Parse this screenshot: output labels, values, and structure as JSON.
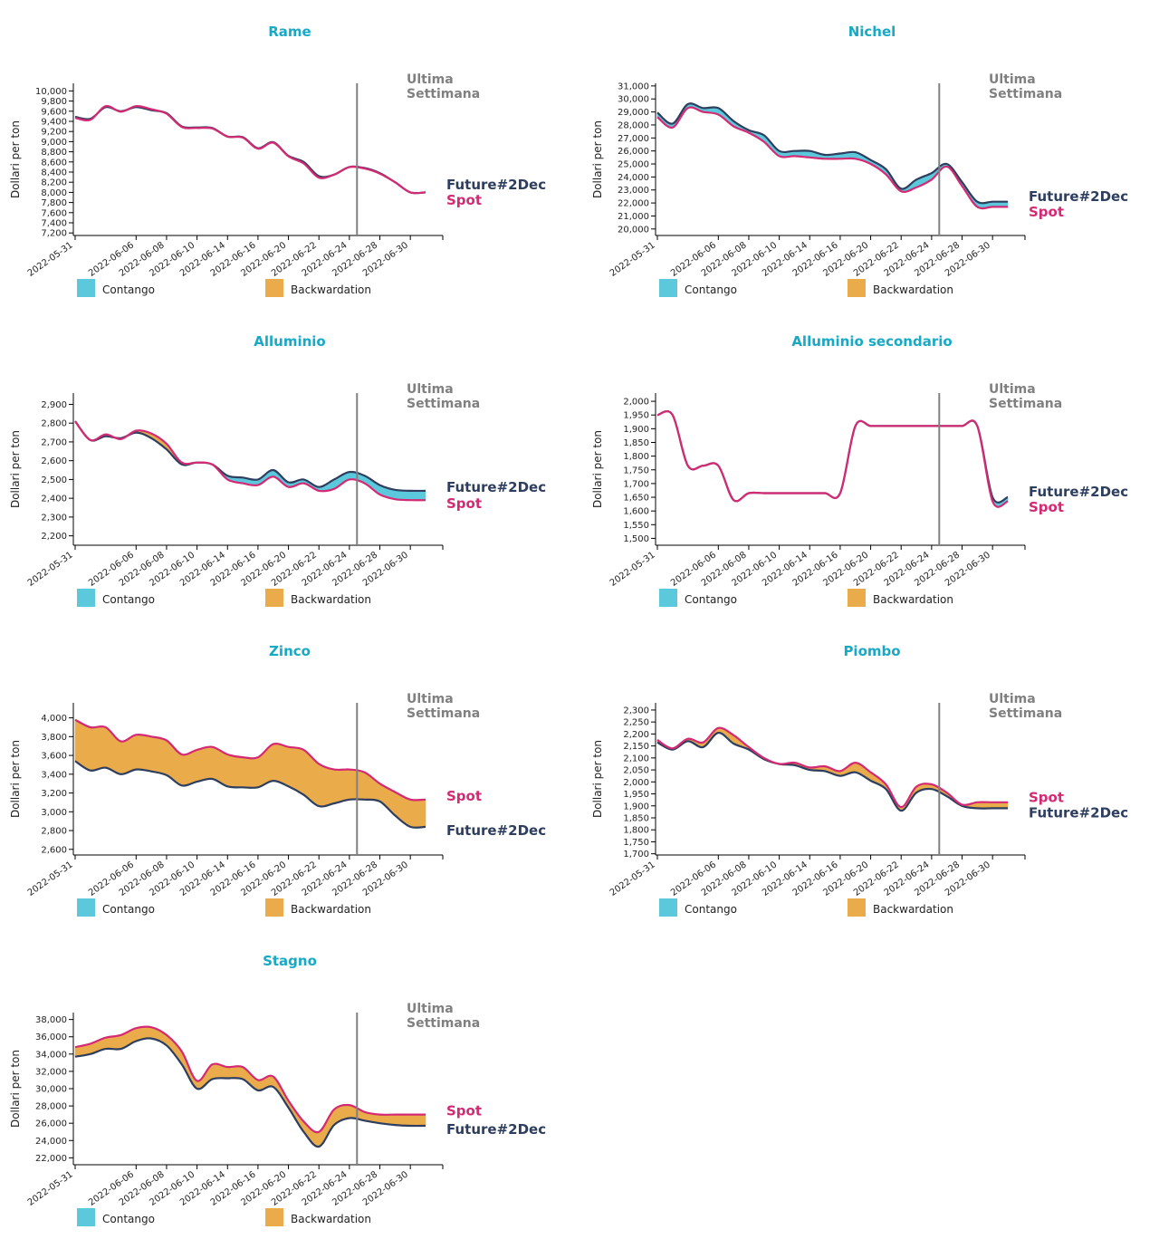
{
  "colors": {
    "title": "#17a9c6",
    "future": "#2d3e5e",
    "spot": "#d42a74",
    "contango": "#5bc8dc",
    "backwardation": "#eaab4a",
    "week_line": "#808080"
  },
  "common": {
    "ylabel": "Dollari per ton",
    "week_label_line1": "Ultima",
    "week_label_line2": "Settimana",
    "future_label": "Future#2Dec",
    "spot_label": "Spot",
    "legend": [
      "Contango",
      "Backwardation"
    ]
  },
  "chart_data": [
    {
      "type": "area",
      "title": "Rame",
      "xlabel": "",
      "ylabel": "Dollari per ton",
      "x": [
        "2022-05-31",
        "2022-06-01",
        "2022-06-02",
        "2022-06-03",
        "2022-06-06",
        "2022-06-07",
        "2022-06-08",
        "2022-06-09",
        "2022-06-10",
        "2022-06-13",
        "2022-06-14",
        "2022-06-15",
        "2022-06-16",
        "2022-06-17",
        "2022-06-20",
        "2022-06-21",
        "2022-06-22",
        "2022-06-23",
        "2022-06-24",
        "2022-06-27",
        "2022-06-28",
        "2022-06-29",
        "2022-06-30",
        "2022-07-01"
      ],
      "x_ticks": [
        "2022-05-31",
        "2022-06-06",
        "2022-06-08",
        "2022-06-10",
        "2022-06-14",
        "2022-06-16",
        "2022-06-20",
        "2022-06-22",
        "2022-06-24",
        "2022-06-28",
        "2022-06-30"
      ],
      "y_ticks": [
        7200,
        7400,
        7600,
        7800,
        8000,
        8200,
        8400,
        8600,
        8800,
        9000,
        9200,
        9400,
        9600,
        9800,
        10000
      ],
      "ylim": [
        7150,
        10150
      ],
      "week_start": "2022-06-27",
      "series": [
        {
          "name": "Future#2Dec",
          "values": [
            9490,
            9450,
            9680,
            9600,
            9680,
            9620,
            9560,
            9300,
            9280,
            9270,
            9100,
            9090,
            8870,
            8990,
            8720,
            8600,
            8320,
            8350,
            8500,
            8480,
            8380,
            8200,
            8000,
            8000
          ]
        },
        {
          "name": "Spot",
          "values": [
            9470,
            9430,
            9700,
            9590,
            9700,
            9640,
            9550,
            9290,
            9270,
            9260,
            9100,
            9080,
            8860,
            8980,
            8710,
            8570,
            8290,
            8350,
            8500,
            8470,
            8370,
            8200,
            8000,
            8000
          ]
        }
      ]
    },
    {
      "type": "area",
      "title": "Nichel",
      "xlabel": "",
      "ylabel": "Dollari per ton",
      "x": [
        "2022-05-31",
        "2022-06-01",
        "2022-06-02",
        "2022-06-03",
        "2022-06-06",
        "2022-06-07",
        "2022-06-08",
        "2022-06-09",
        "2022-06-10",
        "2022-06-13",
        "2022-06-14",
        "2022-06-15",
        "2022-06-16",
        "2022-06-17",
        "2022-06-20",
        "2022-06-21",
        "2022-06-22",
        "2022-06-23",
        "2022-06-24",
        "2022-06-27",
        "2022-06-28",
        "2022-06-29",
        "2022-06-30",
        "2022-07-01"
      ],
      "x_ticks": [
        "2022-05-31",
        "2022-06-06",
        "2022-06-08",
        "2022-06-10",
        "2022-06-14",
        "2022-06-16",
        "2022-06-20",
        "2022-06-22",
        "2022-06-24",
        "2022-06-28",
        "2022-06-30"
      ],
      "y_ticks": [
        20000,
        21000,
        22000,
        23000,
        24000,
        25000,
        26000,
        27000,
        28000,
        29000,
        30000,
        31000
      ],
      "ylim": [
        19500,
        31200
      ],
      "week_start": "2022-06-27",
      "series": [
        {
          "name": "Future#2Dec",
          "values": [
            28950,
            28100,
            29600,
            29300,
            29300,
            28300,
            27600,
            27200,
            26000,
            26000,
            26000,
            25700,
            25800,
            25900,
            25300,
            24600,
            23100,
            23800,
            24300,
            25000,
            23600,
            22100,
            22100,
            22100
          ]
        },
        {
          "name": "Spot",
          "values": [
            28600,
            27800,
            29300,
            29000,
            28800,
            27900,
            27400,
            26700,
            25600,
            25600,
            25500,
            25400,
            25400,
            25400,
            25000,
            24200,
            22900,
            23200,
            23800,
            24800,
            23300,
            21700,
            21700,
            21700
          ]
        }
      ]
    },
    {
      "type": "area",
      "title": "Alluminio",
      "xlabel": "",
      "ylabel": "Dollari per ton",
      "x": [
        "2022-05-31",
        "2022-06-01",
        "2022-06-02",
        "2022-06-03",
        "2022-06-06",
        "2022-06-07",
        "2022-06-08",
        "2022-06-09",
        "2022-06-10",
        "2022-06-13",
        "2022-06-14",
        "2022-06-15",
        "2022-06-16",
        "2022-06-17",
        "2022-06-20",
        "2022-06-21",
        "2022-06-22",
        "2022-06-23",
        "2022-06-24",
        "2022-06-27",
        "2022-06-28",
        "2022-06-29",
        "2022-06-30",
        "2022-07-01"
      ],
      "x_ticks": [
        "2022-05-31",
        "2022-06-06",
        "2022-06-08",
        "2022-06-10",
        "2022-06-14",
        "2022-06-16",
        "2022-06-20",
        "2022-06-22",
        "2022-06-24",
        "2022-06-28",
        "2022-06-30"
      ],
      "y_ticks": [
        2200,
        2300,
        2400,
        2500,
        2600,
        2700,
        2800,
        2900
      ],
      "ylim": [
        2150,
        2960
      ],
      "week_start": "2022-06-27",
      "series": [
        {
          "name": "Future#2Dec",
          "values": [
            2810,
            2710,
            2730,
            2720,
            2750,
            2720,
            2660,
            2580,
            2590,
            2580,
            2520,
            2510,
            2500,
            2550,
            2485,
            2500,
            2460,
            2500,
            2540,
            2520,
            2470,
            2445,
            2440,
            2440
          ]
        },
        {
          "name": "Spot",
          "values": [
            2810,
            2710,
            2740,
            2715,
            2760,
            2745,
            2690,
            2590,
            2590,
            2580,
            2500,
            2480,
            2470,
            2515,
            2460,
            2480,
            2440,
            2450,
            2500,
            2480,
            2420,
            2395,
            2390,
            2390
          ]
        }
      ]
    },
    {
      "type": "area",
      "title": "Alluminio secondario",
      "xlabel": "",
      "ylabel": "Dollari per ton",
      "x": [
        "2022-05-31",
        "2022-06-01",
        "2022-06-02",
        "2022-06-03",
        "2022-06-06",
        "2022-06-07",
        "2022-06-08",
        "2022-06-09",
        "2022-06-10",
        "2022-06-13",
        "2022-06-14",
        "2022-06-15",
        "2022-06-16",
        "2022-06-17",
        "2022-06-20",
        "2022-06-21",
        "2022-06-22",
        "2022-06-23",
        "2022-06-24",
        "2022-06-27",
        "2022-06-28",
        "2022-06-29",
        "2022-06-30",
        "2022-07-01"
      ],
      "x_ticks": [
        "2022-05-31",
        "2022-06-06",
        "2022-06-08",
        "2022-06-10",
        "2022-06-14",
        "2022-06-16",
        "2022-06-20",
        "2022-06-22",
        "2022-06-24",
        "2022-06-28",
        "2022-06-30"
      ],
      "y_ticks": [
        1500,
        1550,
        1600,
        1650,
        1700,
        1750,
        1800,
        1850,
        1900,
        1950,
        2000
      ],
      "ylim": [
        1475,
        2030
      ],
      "week_start": "2022-06-27",
      "series": [
        {
          "name": "Future#2Dec",
          "values": [
            1950,
            1950,
            1765,
            1765,
            1765,
            1640,
            1665,
            1665,
            1665,
            1665,
            1665,
            1665,
            1665,
            1910,
            1910,
            1910,
            1910,
            1910,
            1910,
            1910,
            1910,
            1910,
            1650,
            1650
          ]
        },
        {
          "name": "Spot",
          "values": [
            1950,
            1950,
            1765,
            1765,
            1765,
            1640,
            1665,
            1665,
            1665,
            1665,
            1665,
            1665,
            1665,
            1910,
            1910,
            1910,
            1910,
            1910,
            1910,
            1910,
            1910,
            1910,
            1635,
            1635
          ]
        }
      ]
    },
    {
      "type": "area",
      "title": "Zinco",
      "xlabel": "",
      "ylabel": "Dollari per ton",
      "x": [
        "2022-05-31",
        "2022-06-01",
        "2022-06-02",
        "2022-06-03",
        "2022-06-06",
        "2022-06-07",
        "2022-06-08",
        "2022-06-09",
        "2022-06-10",
        "2022-06-13",
        "2022-06-14",
        "2022-06-15",
        "2022-06-16",
        "2022-06-17",
        "2022-06-20",
        "2022-06-21",
        "2022-06-22",
        "2022-06-23",
        "2022-06-24",
        "2022-06-27",
        "2022-06-28",
        "2022-06-29",
        "2022-06-30",
        "2022-07-01"
      ],
      "x_ticks": [
        "2022-05-31",
        "2022-06-06",
        "2022-06-08",
        "2022-06-10",
        "2022-06-14",
        "2022-06-16",
        "2022-06-20",
        "2022-06-22",
        "2022-06-24",
        "2022-06-28",
        "2022-06-30"
      ],
      "y_ticks": [
        2600,
        2800,
        3000,
        3200,
        3400,
        3600,
        3800,
        4000
      ],
      "ylim": [
        2540,
        4160
      ],
      "week_start": "2022-06-27",
      "series": [
        {
          "name": "Future#2Dec",
          "values": [
            3540,
            3440,
            3470,
            3400,
            3450,
            3430,
            3390,
            3280,
            3320,
            3350,
            3270,
            3260,
            3260,
            3330,
            3270,
            3180,
            3060,
            3090,
            3130,
            3130,
            3110,
            2960,
            2840,
            2840
          ]
        },
        {
          "name": "Spot",
          "values": [
            3980,
            3900,
            3900,
            3750,
            3820,
            3800,
            3760,
            3610,
            3660,
            3690,
            3610,
            3580,
            3580,
            3720,
            3690,
            3660,
            3510,
            3450,
            3450,
            3420,
            3300,
            3210,
            3130,
            3130
          ]
        }
      ]
    },
    {
      "type": "area",
      "title": "Piombo",
      "xlabel": "",
      "ylabel": "Dollari per ton",
      "x": [
        "2022-05-31",
        "2022-06-01",
        "2022-06-02",
        "2022-06-03",
        "2022-06-06",
        "2022-06-07",
        "2022-06-08",
        "2022-06-09",
        "2022-06-10",
        "2022-06-13",
        "2022-06-14",
        "2022-06-15",
        "2022-06-16",
        "2022-06-17",
        "2022-06-20",
        "2022-06-21",
        "2022-06-22",
        "2022-06-23",
        "2022-06-24",
        "2022-06-27",
        "2022-06-28",
        "2022-06-29",
        "2022-06-30",
        "2022-07-01"
      ],
      "x_ticks": [
        "2022-05-31",
        "2022-06-06",
        "2022-06-08",
        "2022-06-10",
        "2022-06-14",
        "2022-06-16",
        "2022-06-20",
        "2022-06-22",
        "2022-06-24",
        "2022-06-28",
        "2022-06-30"
      ],
      "y_ticks": [
        1700,
        1750,
        1800,
        1850,
        1900,
        1950,
        2000,
        2050,
        2100,
        2150,
        2200,
        2250,
        2300
      ],
      "ylim": [
        1695,
        2330
      ],
      "week_start": "2022-06-27",
      "series": [
        {
          "name": "Future#2Dec",
          "values": [
            2165,
            2135,
            2170,
            2145,
            2205,
            2160,
            2135,
            2095,
            2075,
            2070,
            2050,
            2045,
            2025,
            2040,
            2005,
            1970,
            1880,
            1955,
            1970,
            1940,
            1900,
            1890,
            1890,
            1890
          ]
        },
        {
          "name": "Spot",
          "values": [
            2175,
            2140,
            2180,
            2165,
            2225,
            2195,
            2145,
            2100,
            2075,
            2080,
            2060,
            2065,
            2045,
            2080,
            2040,
            1990,
            1895,
            1980,
            1990,
            1955,
            1905,
            1915,
            1915,
            1915
          ]
        }
      ]
    },
    {
      "type": "area",
      "title": "Stagno",
      "xlabel": "",
      "ylabel": "Dollari per ton",
      "x": [
        "2022-05-31",
        "2022-06-01",
        "2022-06-02",
        "2022-06-03",
        "2022-06-06",
        "2022-06-07",
        "2022-06-08",
        "2022-06-09",
        "2022-06-10",
        "2022-06-13",
        "2022-06-14",
        "2022-06-15",
        "2022-06-16",
        "2022-06-17",
        "2022-06-20",
        "2022-06-21",
        "2022-06-22",
        "2022-06-23",
        "2022-06-24",
        "2022-06-27",
        "2022-06-28",
        "2022-06-29",
        "2022-06-30",
        "2022-07-01"
      ],
      "x_ticks": [
        "2022-05-31",
        "2022-06-06",
        "2022-06-08",
        "2022-06-10",
        "2022-06-14",
        "2022-06-16",
        "2022-06-20",
        "2022-06-22",
        "2022-06-24",
        "2022-06-28",
        "2022-06-30"
      ],
      "y_ticks": [
        22000,
        24000,
        26000,
        28000,
        30000,
        32000,
        34000,
        36000,
        38000
      ],
      "ylim": [
        21200,
        38800
      ],
      "week_start": "2022-06-27",
      "series": [
        {
          "name": "Future#2Dec",
          "values": [
            33700,
            34000,
            34600,
            34600,
            35500,
            35800,
            35000,
            32800,
            30000,
            31100,
            31200,
            31100,
            29800,
            30200,
            27800,
            25000,
            23300,
            25800,
            26600,
            26300,
            26000,
            25800,
            25700,
            25700
          ]
        },
        {
          "name": "Spot",
          "values": [
            34800,
            35200,
            35900,
            36200,
            37000,
            37100,
            36200,
            34300,
            30900,
            32800,
            32500,
            32500,
            31000,
            31400,
            28600,
            26200,
            25000,
            27600,
            28100,
            27300,
            27000,
            27000,
            27000,
            27000
          ]
        }
      ]
    }
  ]
}
